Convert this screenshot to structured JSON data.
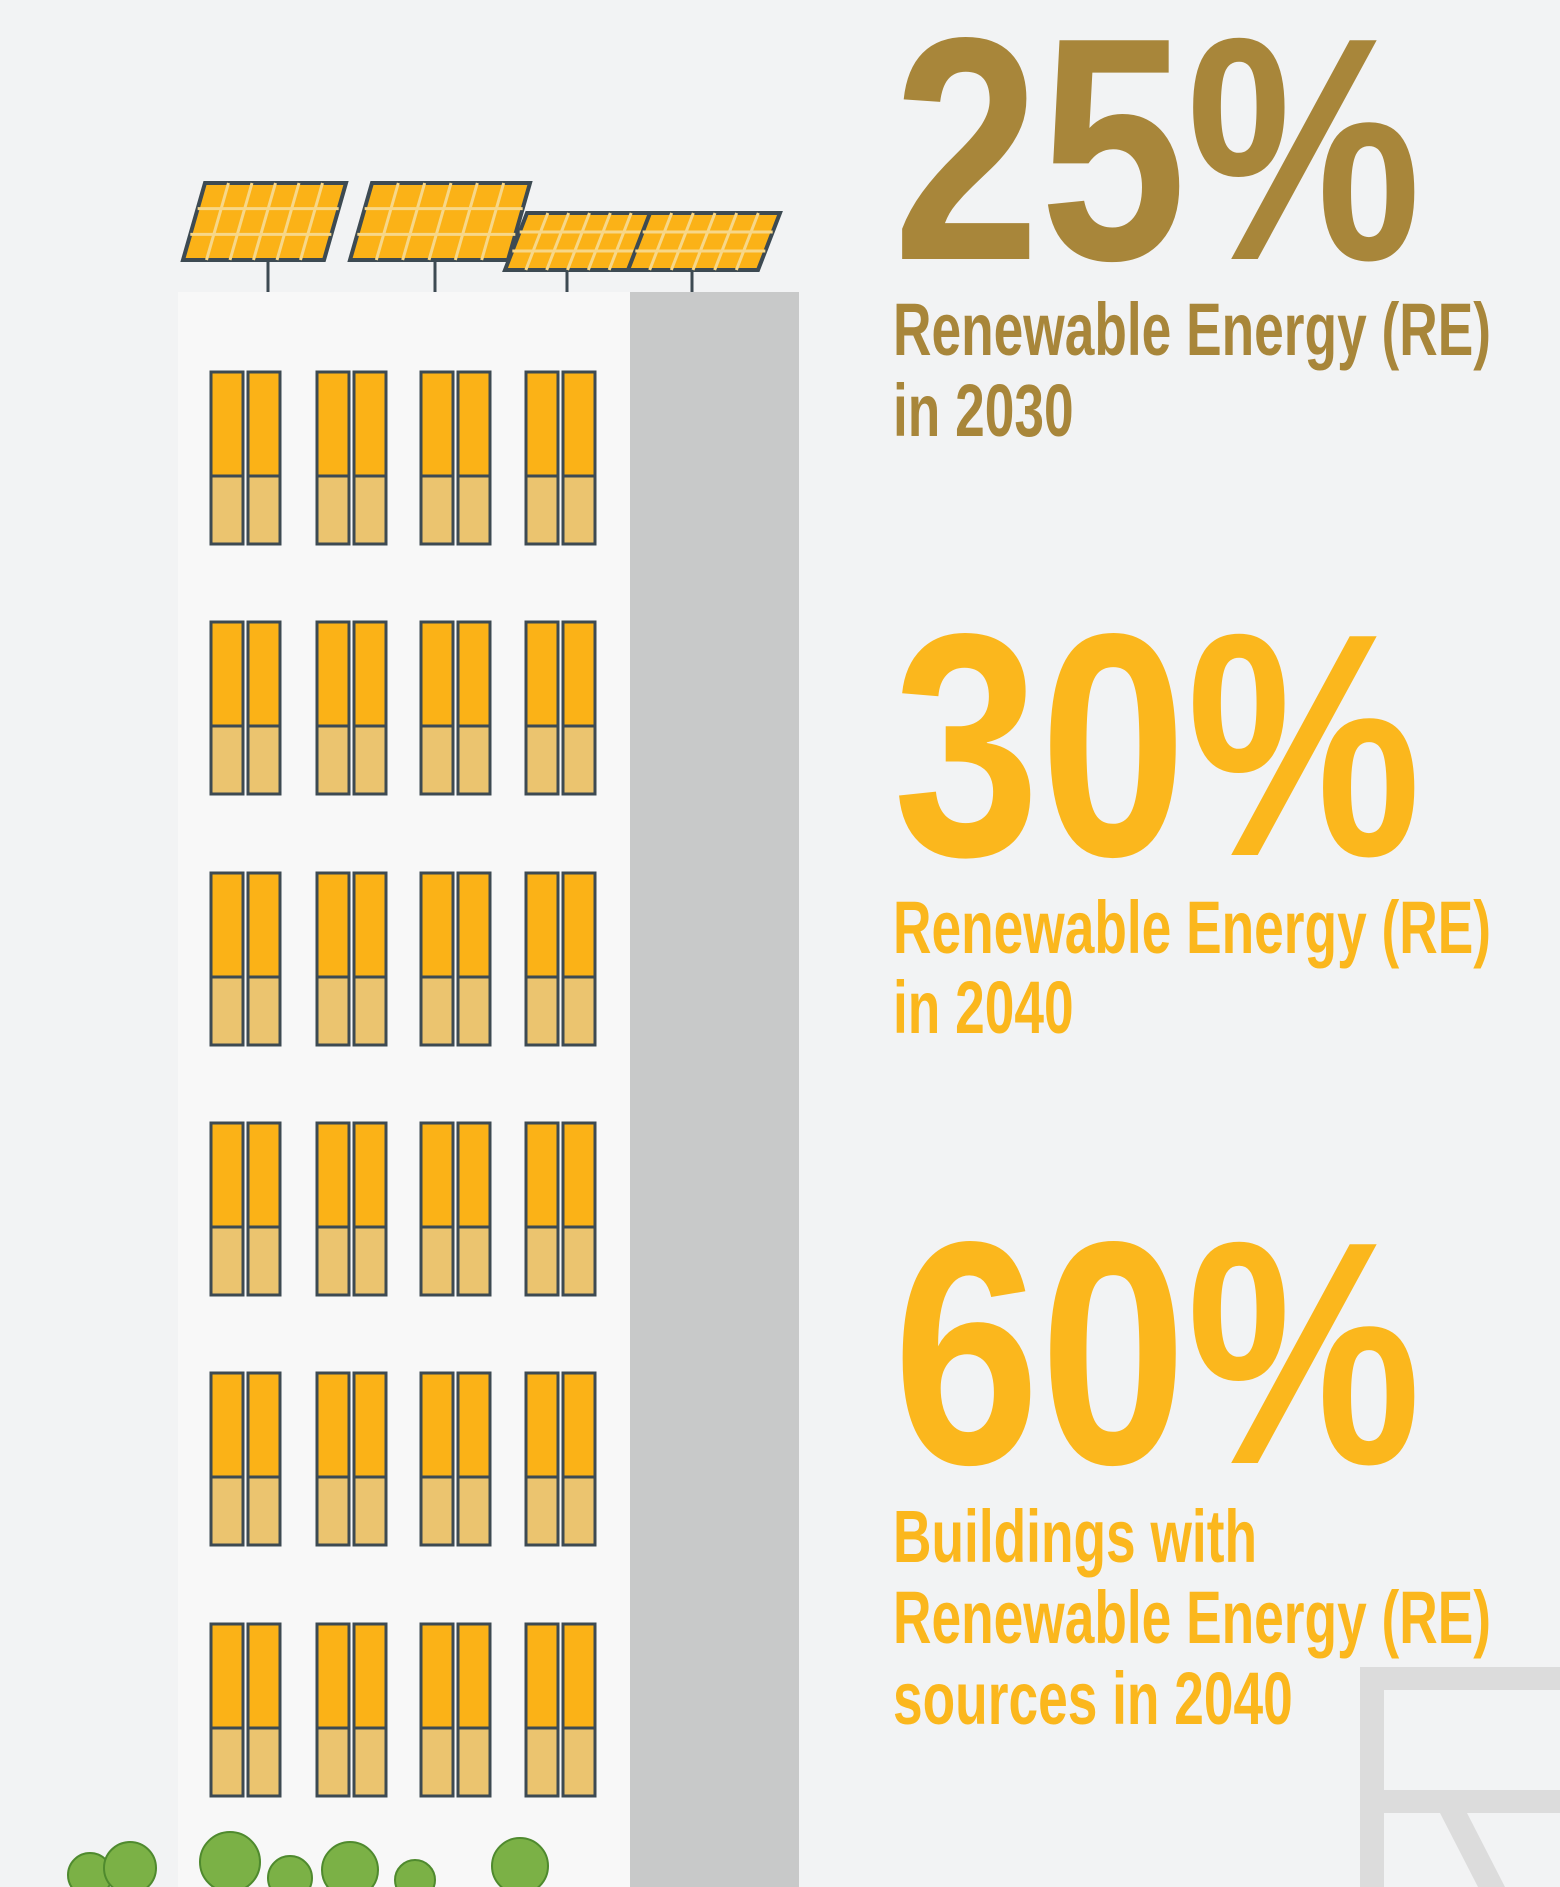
{
  "stats": [
    {
      "value": "25%",
      "lines": [
        "Renewable Energy (RE)",
        "in 2030"
      ]
    },
    {
      "value": "30%",
      "lines": [
        "Renewable Energy (RE)",
        "in 2040"
      ]
    },
    {
      "value": "60%",
      "lines": [
        "Buildings with",
        "Renewable Energy (RE)",
        "sources in 2040"
      ]
    }
  ]
}
